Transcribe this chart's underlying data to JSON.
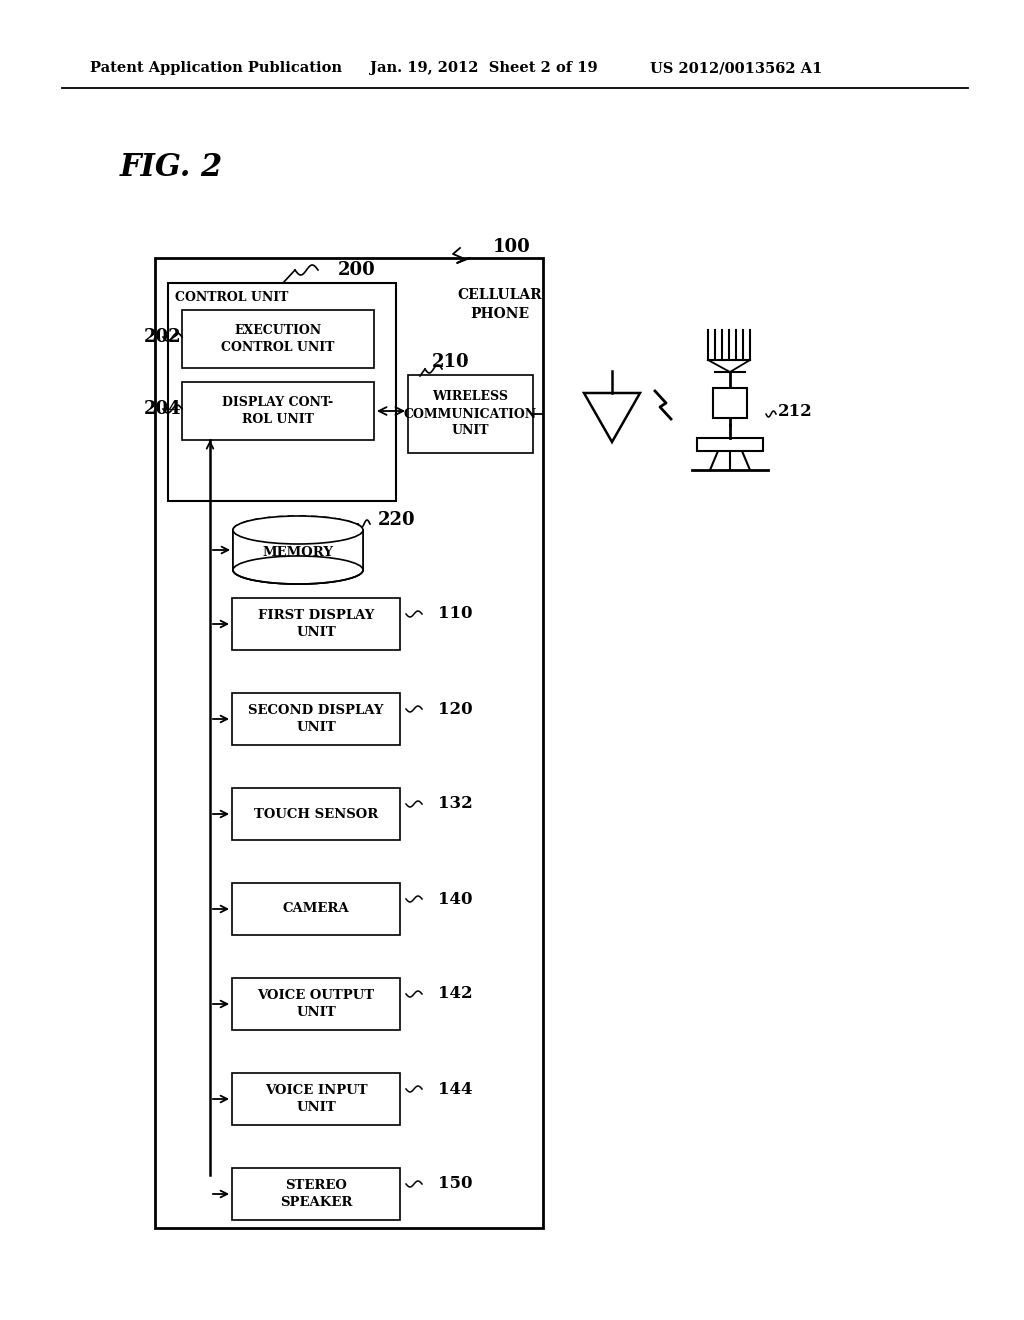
{
  "bg_color": "#ffffff",
  "header_left": "Patent Application Publication",
  "header_mid": "Jan. 19, 2012  Sheet 2 of 19",
  "header_right": "US 2012/0013562 A1",
  "fig_label": "FIG. 2",
  "outer_label": "100",
  "cellular_phone": "CELLULAR\nPHONE",
  "ctrl_label": "200",
  "control_unit": "CONTROL UNIT",
  "exec_ctrl": "EXECUTION\nCONTROL UNIT",
  "exec_ref": "202",
  "disp_ctrl": "DISPLAY CONT-\nROL UNIT",
  "disp_ref": "204",
  "wireless": "WIRELESS\nCOMMUNICATION\nUNIT",
  "wireless_ref": "210",
  "memory": "MEMORY",
  "memory_ref": "220",
  "components": [
    {
      "label": "FIRST DISPLAY\nUNIT",
      "ref": "110"
    },
    {
      "label": "SECOND DISPLAY\nUNIT",
      "ref": "120"
    },
    {
      "label": "TOUCH SENSOR",
      "ref": "132"
    },
    {
      "label": "CAMERA",
      "ref": "140"
    },
    {
      "label": "VOICE OUTPUT\nUNIT",
      "ref": "142"
    },
    {
      "label": "VOICE INPUT\nUNIT",
      "ref": "144"
    },
    {
      "label": "STEREO\nSPEAKER",
      "ref": "150"
    }
  ],
  "base_station_ref": "212"
}
